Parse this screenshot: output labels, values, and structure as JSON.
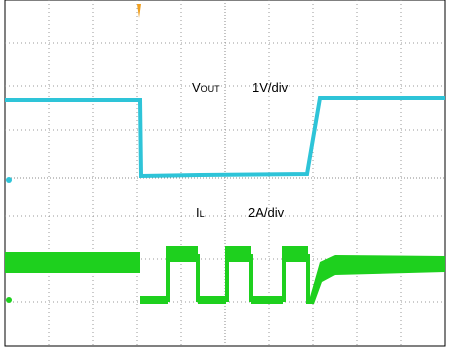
{
  "labels": {
    "vout": {
      "main": "V",
      "sub": "OUT"
    },
    "vout_scale": "1V/div",
    "il": {
      "main": "I",
      "sub": "L"
    },
    "il_scale": "2A/div"
  }
}
